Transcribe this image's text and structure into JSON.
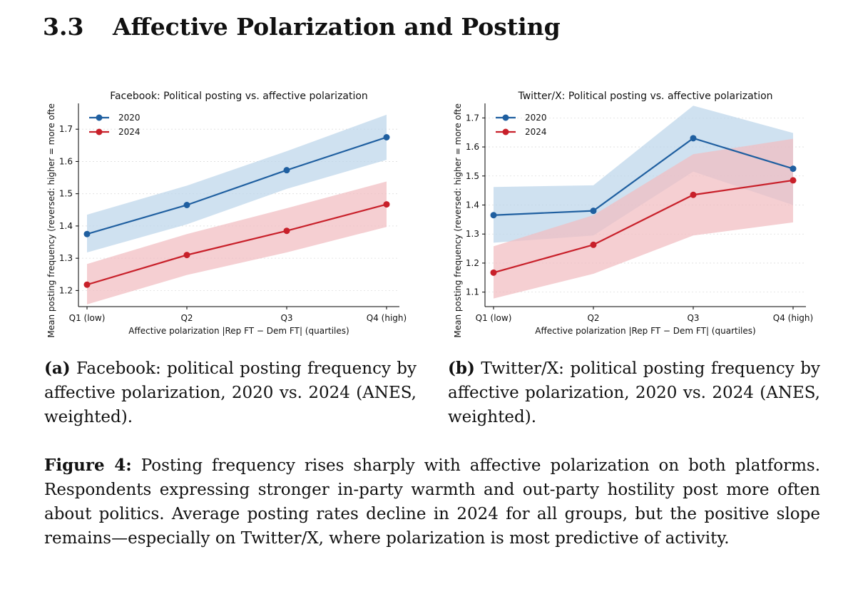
{
  "section": {
    "number": "3.3",
    "title": "Affective Polarization and Posting"
  },
  "panels": {
    "a": {
      "label": "(a)",
      "caption": "Facebook: political posting frequency by affective polarization, 2020 vs. 2024 (ANES, weighted)."
    },
    "b": {
      "label": "(b)",
      "caption": "Twitter/X: political posting frequency by affective polarization, 2020 vs. 2024 (ANES, weighted)."
    }
  },
  "figure": {
    "label": "Figure 4:",
    "caption": "Posting frequency rises sharply with affective polarization on both platforms. Respondents expressing stronger in-party warmth and out-party hostility post more often about politics. Average posting rates decline in 2024 for all groups, but the positive slope remains—especially on Twitter/X, where polarization is most predictive of activity."
  },
  "colors": {
    "series_2020": "#1f5fa0",
    "series_2024": "#c8202a",
    "band_2020": "#bcd5ea",
    "band_2024": "#f1bcc0",
    "grid": "#dddddd"
  },
  "chart_data": [
    {
      "type": "line",
      "title": "Facebook: Political posting vs. affective polarization",
      "xlabel": "Affective polarization |Rep FT − Dem FT| (quartiles)",
      "ylabel": "Mean posting frequency (reversed: higher = more ofte",
      "categories": [
        "Q1 (low)",
        "Q2",
        "Q3",
        "Q4 (high)"
      ],
      "ylim": [
        1.15,
        1.78
      ],
      "yticks": [
        1.2,
        1.3,
        1.4,
        1.5,
        1.6,
        1.7
      ],
      "legend_position": "top-left",
      "grid": "horizontal",
      "series": [
        {
          "name": "2020",
          "values": [
            1.375,
            1.465,
            1.573,
            1.675
          ],
          "lower": [
            1.318,
            1.405,
            1.515,
            1.605
          ],
          "upper": [
            1.435,
            1.525,
            1.632,
            1.745
          ]
        },
        {
          "name": "2024",
          "values": [
            1.218,
            1.31,
            1.385,
            1.467
          ],
          "lower": [
            1.157,
            1.248,
            1.318,
            1.397
          ],
          "upper": [
            1.282,
            1.375,
            1.455,
            1.538
          ]
        }
      ]
    },
    {
      "type": "line",
      "title": "Twitter/X: Political posting vs. affective polarization",
      "xlabel": "Affective polarization |Rep FT − Dem FT| (quartiles)",
      "ylabel": "Mean posting frequency (reversed: higher = more ofte",
      "categories": [
        "Q1 (low)",
        "Q2",
        "Q3",
        "Q4 (high)"
      ],
      "ylim": [
        1.05,
        1.75
      ],
      "yticks": [
        1.1,
        1.2,
        1.3,
        1.4,
        1.5,
        1.6,
        1.7
      ],
      "legend_position": "top-left",
      "grid": "horizontal",
      "series": [
        {
          "name": "2020",
          "values": [
            1.365,
            1.38,
            1.63,
            1.525
          ],
          "lower": [
            1.27,
            1.295,
            1.515,
            1.4
          ],
          "upper": [
            1.462,
            1.468,
            1.742,
            1.648
          ]
        },
        {
          "name": "2024",
          "values": [
            1.167,
            1.263,
            1.435,
            1.485
          ],
          "lower": [
            1.078,
            1.163,
            1.295,
            1.34
          ],
          "upper": [
            1.258,
            1.365,
            1.575,
            1.628
          ]
        }
      ]
    }
  ]
}
